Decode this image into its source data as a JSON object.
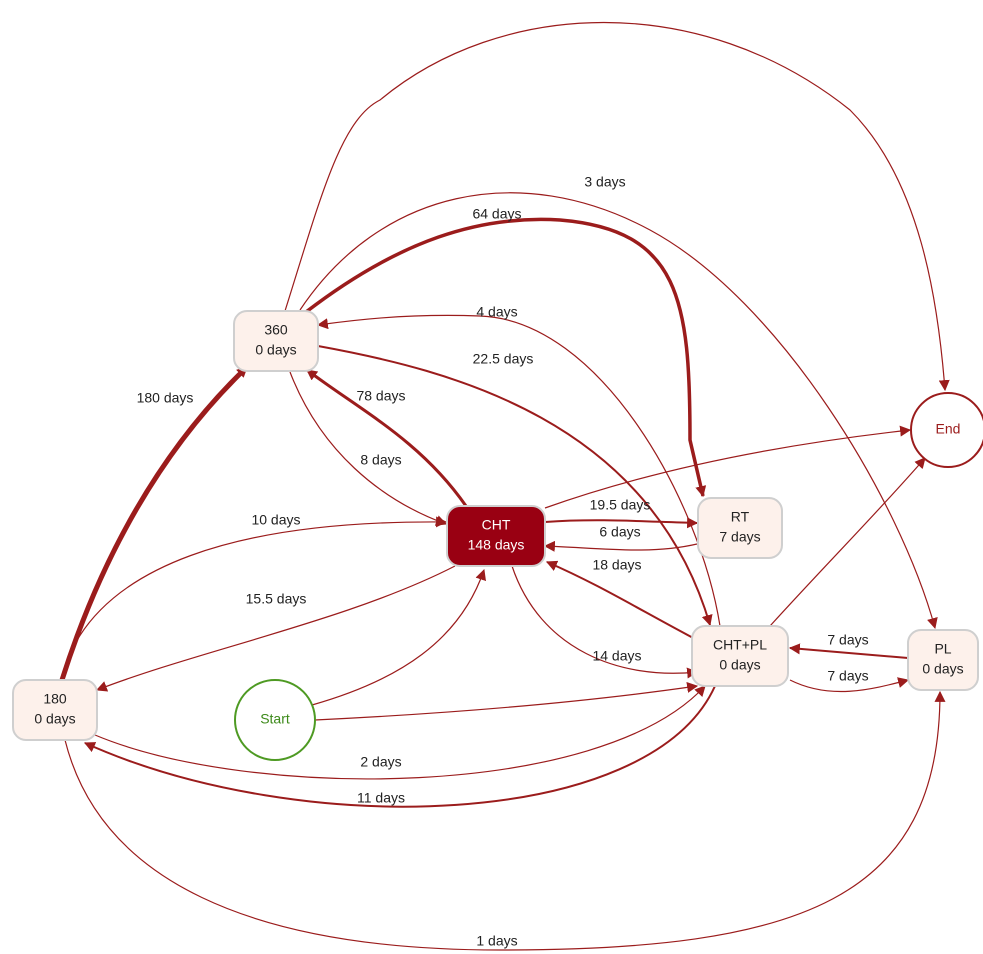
{
  "nodes": [
    {
      "name": "360",
      "duration": "0 days"
    },
    {
      "name": "CHT",
      "duration": "148 days"
    },
    {
      "name": "RT",
      "duration": "7 days"
    },
    {
      "name": "CHT+PL",
      "duration": "0 days"
    },
    {
      "name": "PL",
      "duration": "0 days"
    },
    {
      "name": "180",
      "duration": "0 days"
    },
    {
      "name": "Start"
    },
    {
      "name": "End"
    }
  ],
  "edges": [
    "3 days",
    "64 days",
    "4 days",
    "22.5 days",
    "78 days",
    "8 days",
    "180 days",
    "10 days",
    "15.5 days",
    "19.5 days",
    "6 days",
    "18 days",
    "14 days",
    "7 days",
    "7 days",
    "2 days",
    "11 days",
    "1 days"
  ]
}
